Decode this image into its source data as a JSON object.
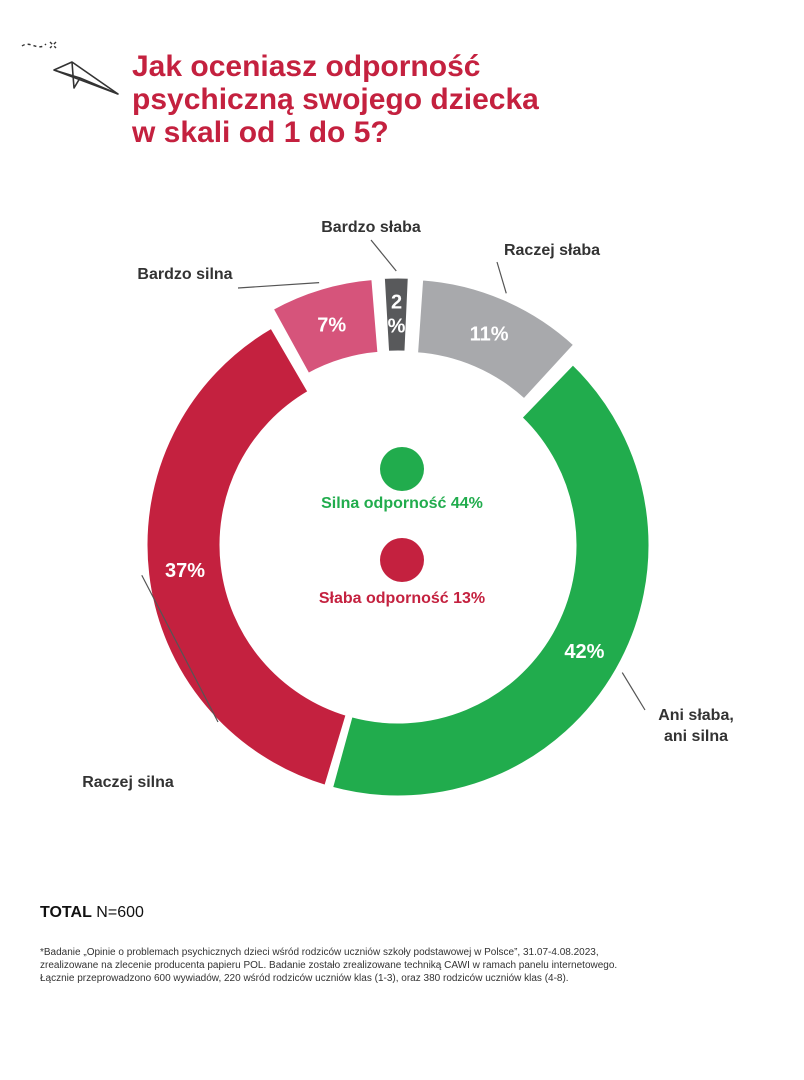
{
  "title": {
    "lines": [
      "Jak oceniasz odporność",
      "psychiczną swojego dziecka",
      "w skali od 1 do 5?"
    ]
  },
  "colors": {
    "title": "#c4213f",
    "bardzo_slaba": "#58595b",
    "raczej_slaba": "#a8a9ac",
    "ani": "#21ac4d",
    "raczej_silna": "#c4213f",
    "bardzo_silna": "#d6547b",
    "silna_summary": "#21ac4d",
    "slaba_summary": "#c4213f"
  },
  "icons": {
    "decoration": "paper-plane-icon"
  },
  "chart_data": {
    "type": "pie",
    "style": "donut",
    "categories": [
      "Bardzo słaba",
      "Raczej słaba",
      "Ani słaba,\nani silna",
      "Raczej silna",
      "Bardzo silna"
    ],
    "values": [
      2,
      11,
      42,
      37,
      7
    ],
    "value_labels": [
      "2%",
      "11%",
      "42%",
      "37%",
      "7%"
    ],
    "summary": [
      {
        "label": "Silna odporność 44%",
        "color": "#21ac4d"
      },
      {
        "label": "Słaba odporność 13%",
        "color": "#c4213f"
      }
    ]
  },
  "total": {
    "label": "TOTAL",
    "value": "N=600"
  },
  "footnote": "*Badanie „Opinie o problemach psychicznych dzieci wśród rodziców uczniów szkoły podstawowej w Polsce”, 31.07-4.08.2023, zrealizowane na zlecenie producenta papieru POL. Badanie zostało zrealizowane techniką CAWI w ramach panelu internetowego. Łącznie przeprowadzono 600 wywiadów, 220 wśród rodziców uczniów klas (1-3), oraz 380 rodziców uczniów klas (4-8)."
}
